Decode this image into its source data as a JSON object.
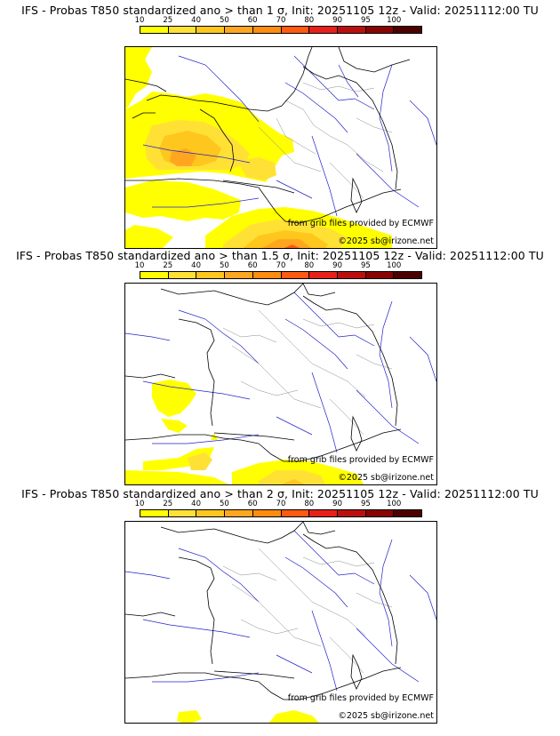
{
  "legend": {
    "ticks": [
      "10",
      "25",
      "40",
      "50",
      "60",
      "70",
      "80",
      "90",
      "95",
      "100"
    ],
    "colors": [
      "#ffff00",
      "#ffe135",
      "#ffc61d",
      "#ffa621",
      "#ff8c0f",
      "#ff5a12",
      "#e8201a",
      "#bb0f0f",
      "#8a0303",
      "#4d0000"
    ]
  },
  "credits": {
    "source": "from grib files provided by ECMWF",
    "copyright": "©2025 sb@irizone.net"
  },
  "panels": [
    {
      "title": "IFS - Probas T850  standardized ano > than 1 σ, Init: 20251105 12z - Valid: 20251112:00 TU",
      "threshold": "1 σ"
    },
    {
      "title": "IFS - Probas T850  standardized ano > than 1.5 σ, Init: 20251105 12z - Valid: 20251112:00 TU",
      "threshold": "1.5 σ"
    },
    {
      "title": "IFS - Probas T850  standardized ano > than 2 σ, Init: 20251105 12z - Valid: 20251112:00 TU",
      "threshold": "2 σ"
    }
  ]
}
